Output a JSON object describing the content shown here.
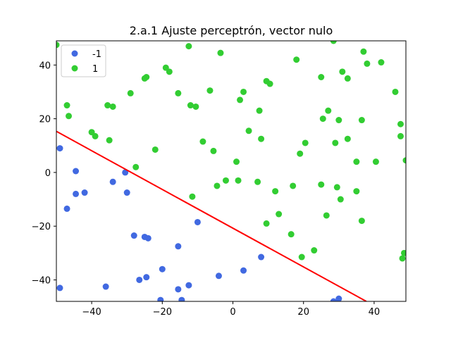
{
  "chart_data": {
    "type": "scatter",
    "title": "2.a.1 Ajuste perceptrón, vector nulo",
    "xlabel": "",
    "ylabel": "",
    "xlim": [
      -50,
      49
    ],
    "ylim": [
      -48,
      49
    ],
    "xticks": [
      -40,
      -20,
      0,
      20,
      40
    ],
    "yticks": [
      -40,
      -20,
      0,
      20,
      40
    ],
    "grid": false,
    "legend_position": "top-left",
    "series": [
      {
        "name": "-1",
        "color": "#4169E1",
        "points": [
          [
            -49,
            9
          ],
          [
            -49,
            -43
          ],
          [
            -47,
            -13.5
          ],
          [
            -44.5,
            0.5
          ],
          [
            -44.5,
            -8
          ],
          [
            -42,
            -7.5
          ],
          [
            -36,
            -42.5
          ],
          [
            -34,
            -3.5
          ],
          [
            -30.5,
            0
          ],
          [
            -30,
            -7.5
          ],
          [
            -28,
            -23.5
          ],
          [
            -26.5,
            -40
          ],
          [
            -25,
            -24
          ],
          [
            -24,
            -24.5
          ],
          [
            -24.5,
            -39
          ],
          [
            -20,
            -36
          ],
          [
            -20.5,
            -47.5
          ],
          [
            -15.5,
            -43.5
          ],
          [
            -15.5,
            -27.5
          ],
          [
            -14.5,
            -47.5
          ],
          [
            -12.5,
            -42
          ],
          [
            -10,
            -18.5
          ],
          [
            -4,
            -38.5
          ],
          [
            3,
            -36.5
          ],
          [
            8,
            -31.5
          ],
          [
            28.5,
            -48
          ],
          [
            30,
            -47
          ]
        ]
      },
      {
        "name": "1",
        "color": "#32CD32",
        "points": [
          [
            -50,
            47.5
          ],
          [
            -47,
            25
          ],
          [
            -46.5,
            21
          ],
          [
            -40,
            15
          ],
          [
            -39,
            13.5
          ],
          [
            -35.5,
            25
          ],
          [
            -35,
            12
          ],
          [
            -34,
            24.5
          ],
          [
            -29,
            29.5
          ],
          [
            -27.5,
            2
          ],
          [
            -25,
            35
          ],
          [
            -24.5,
            35.5
          ],
          [
            -22,
            8.5
          ],
          [
            -19,
            39
          ],
          [
            -18,
            37.5
          ],
          [
            -15.5,
            29.5
          ],
          [
            -12.5,
            47
          ],
          [
            -12,
            25
          ],
          [
            -11.5,
            -9
          ],
          [
            -10.5,
            24.5
          ],
          [
            -8.5,
            11.5
          ],
          [
            -6.5,
            30.5
          ],
          [
            -5.5,
            8
          ],
          [
            -4.5,
            -5
          ],
          [
            -3.5,
            44.5
          ],
          [
            -2,
            -3
          ],
          [
            1,
            4
          ],
          [
            1.5,
            -3
          ],
          [
            2,
            27
          ],
          [
            3,
            30
          ],
          [
            4.5,
            15.5
          ],
          [
            7,
            -3.5
          ],
          [
            7.5,
            23
          ],
          [
            8,
            12.5
          ],
          [
            9.5,
            34
          ],
          [
            9.5,
            -19
          ],
          [
            10.5,
            33
          ],
          [
            12,
            -7
          ],
          [
            13,
            -15.5
          ],
          [
            16.5,
            -23
          ],
          [
            17,
            -5
          ],
          [
            18,
            42
          ],
          [
            19,
            7
          ],
          [
            19.5,
            -31.5
          ],
          [
            20.5,
            11
          ],
          [
            23,
            -29
          ],
          [
            25,
            35.5
          ],
          [
            25,
            -4.5
          ],
          [
            25.5,
            20
          ],
          [
            26.5,
            -16
          ],
          [
            27,
            23
          ],
          [
            28.5,
            49
          ],
          [
            29,
            11
          ],
          [
            29.5,
            -5.5
          ],
          [
            30,
            19.5
          ],
          [
            30.5,
            -10
          ],
          [
            31,
            37.5
          ],
          [
            32.5,
            12.5
          ],
          [
            32.5,
            35
          ],
          [
            35,
            4
          ],
          [
            35,
            -7
          ],
          [
            36.5,
            19.5
          ],
          [
            36.5,
            -18
          ],
          [
            37,
            45
          ],
          [
            38,
            40.5
          ],
          [
            40.5,
            4
          ],
          [
            42,
            41
          ],
          [
            46,
            30
          ],
          [
            47.5,
            18
          ],
          [
            47.5,
            13.5
          ],
          [
            48,
            -32
          ],
          [
            48.5,
            -30
          ],
          [
            49,
            4.5
          ]
        ]
      }
    ],
    "line": {
      "color": "#FF0000",
      "points": [
        [
          -50,
          15.3
        ],
        [
          37.8,
          -48
        ]
      ]
    }
  }
}
